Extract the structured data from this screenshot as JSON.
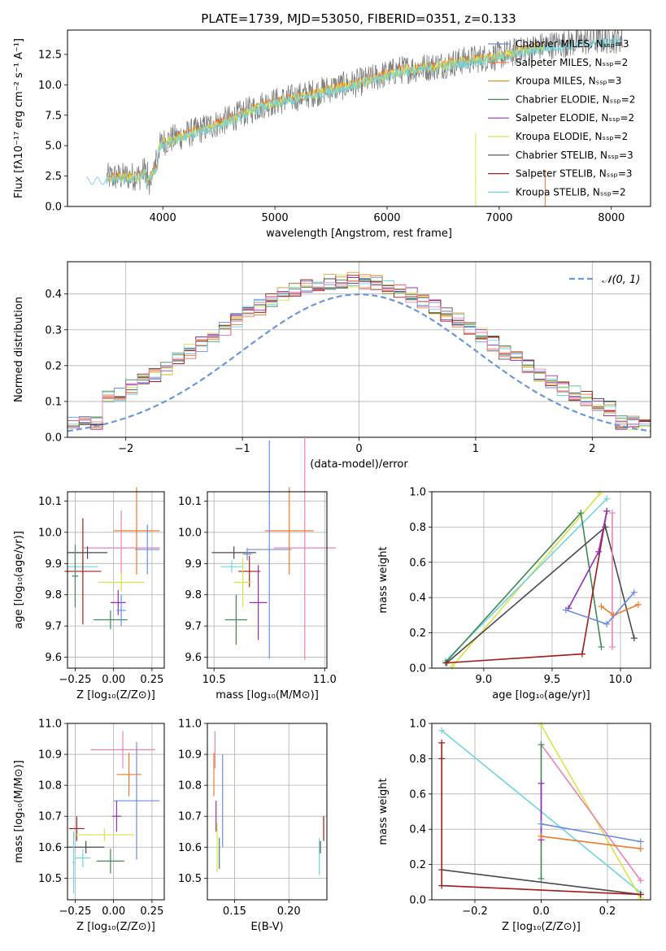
{
  "palette": {
    "chabrier_miles": "#6a8ee0",
    "salpeter_miles": "#ee7b2d",
    "kroupa_miles": "#d9912e",
    "chabrier_elodie": "#3f8a55",
    "salpeter_elodie": "#9b30b8",
    "kroupa_elodie": "#d9e34a",
    "chabrier_stelib": "#4a4a4a",
    "salpeter_stelib": "#a31b1b",
    "kroupa_stelib": "#72d4e0",
    "pink": "#ee82b5",
    "gaussian": "#6a98d8",
    "grid": "#b0b0b0",
    "spectrum": "#7f7f7f"
  },
  "chart_data": [
    {
      "id": "spectrum",
      "type": "line",
      "title": "PLATE=1739, MJD=53050, FIBERID=0351, z=0.133",
      "xlabel": "wavelength [Angstrom, rest frame]",
      "ylabel": "Flux [fλ10⁻¹⁷ erg cm⁻² s⁻¹ A⁻¹]",
      "xlim": [
        3150,
        8350
      ],
      "ylim": [
        0,
        14.5
      ],
      "xticks": [
        "4000",
        "5000",
        "6000",
        "7000",
        "8000"
      ],
      "yticks": [
        "0.0",
        "2.5",
        "5.0",
        "7.5",
        "10.0",
        "12.5"
      ],
      "grid": false,
      "legend_position": "top-right",
      "legend": [
        "Chabrier MILES, Nₛₛₚ=3",
        "Salpeter MILES, Nₛₛₚ=2",
        "Kroupa MILES, Nₛₛₚ=3",
        "Chabrier ELODIE, Nₛₛₚ=2",
        "Salpeter ELODIE, Nₛₛₚ=2",
        "Kroupa ELODIE, Nₛₛₚ=2",
        "Chabrier STELIB, Nₛₛₚ=3",
        "Salpeter STELIB, Nₛₛₚ=3",
        "Kroupa STELIB, Nₛₛₚ=2"
      ],
      "observed_trend": {
        "x": [
          3300,
          3500,
          3800,
          4000,
          4300,
          4600,
          4900,
          5200,
          5500,
          5800,
          6100,
          6400,
          6700,
          7000,
          7400,
          7800,
          8100
        ],
        "y": [
          2.2,
          2.4,
          2.5,
          5.3,
          6.2,
          7.2,
          8.4,
          9.0,
          9.7,
          10.3,
          11.2,
          11.5,
          12.0,
          12.4,
          13.2,
          13.6,
          13.8
        ]
      }
    },
    {
      "id": "residuals",
      "type": "histogram",
      "xlabel": "(data-model)/error",
      "ylabel": "Normed distribution",
      "xlim": [
        -2.5,
        2.5
      ],
      "ylim": [
        0,
        0.49
      ],
      "xticks": [
        "−2",
        "−1",
        "0",
        "1",
        "2"
      ],
      "yticks": [
        "0.0",
        "0.1",
        "0.2",
        "0.3",
        "0.4"
      ],
      "grid": true,
      "legend_position": "top-right",
      "legend": [
        "𝒩(0, 1)"
      ],
      "bin_width": 0.1
    },
    {
      "id": "age_vs_Z",
      "type": "errorbar",
      "xlabel": "Z [log₁₀(Z/Z⊙)]",
      "ylabel": "age  [log₁₀(age/yr)]",
      "xlim": [
        -0.3,
        0.33
      ],
      "ylim": [
        9.565,
        10.13
      ],
      "xticks": [
        "−0.25",
        "0.00",
        "0.25"
      ],
      "yticks": [
        "9.6",
        "9.7",
        "9.8",
        "9.9",
        "10.0",
        "10.1"
      ],
      "grid": true,
      "points": [
        {
          "color": "pink",
          "x": 0.05,
          "xerr": 0.25,
          "y": 9.95,
          "yerr": 0.12
        },
        {
          "color": "salpeter_miles",
          "x": 0.15,
          "xerr": 0.15,
          "y": 10.005,
          "yerr": 0.14
        },
        {
          "color": "chabrier_miles",
          "x": 0.22,
          "xerr": 0.08,
          "y": 9.945,
          "yerr": 0.08
        },
        {
          "color": "chabrier_stelib",
          "x": -0.17,
          "xerr": 0.13,
          "y": 9.935,
          "yerr": 0.02
        },
        {
          "color": "kroupa_stelib",
          "x": -0.2,
          "xerr": 0.1,
          "y": 9.89,
          "yerr": 0.02
        },
        {
          "color": "salpeter_stelib",
          "x": -0.2,
          "xerr": 0.12,
          "y": 9.875,
          "yerr": 0.17
        },
        {
          "color": "kroupa_elodie",
          "x": 0.05,
          "xerr": 0.15,
          "y": 9.84,
          "yerr": 0.03
        },
        {
          "color": "salpeter_elodie",
          "x": 0.03,
          "xerr": 0.05,
          "y": 9.775,
          "yerr": 0.04
        },
        {
          "color": "chabrier_elodie",
          "x": -0.02,
          "xerr": 0.11,
          "y": 9.72,
          "yerr": 0.03
        },
        {
          "color": "chabrier_elodie",
          "x": -0.25,
          "xerr": 0.02,
          "y": 9.86,
          "yerr": 0.1
        },
        {
          "color": "chabrier_miles",
          "x": 0.05,
          "xerr": 0.03,
          "y": 9.75,
          "yerr": 0.05
        }
      ]
    },
    {
      "id": "age_vs_mass",
      "type": "errorbar",
      "xlabel": "mass [log₁₀(M/M⊙)]",
      "xlim": [
        10.47,
        11.01
      ],
      "ylim": [
        9.565,
        10.13
      ],
      "xticks": [
        "10.5",
        "11.0"
      ],
      "yticks": [
        "9.6",
        "9.7",
        "9.8",
        "9.9",
        "10.0",
        "10.1"
      ],
      "grid": true,
      "points": [
        {
          "color": "pink",
          "x": 10.91,
          "xerr": 0.14,
          "y": 9.95,
          "yerr": 0.36
        },
        {
          "color": "salpeter_miles",
          "x": 10.84,
          "xerr": 0.11,
          "y": 10.005,
          "yerr": 0.14
        },
        {
          "color": "chabrier_miles",
          "x": 10.75,
          "xerr": 0.1,
          "y": 9.945,
          "yerr": 0.35
        },
        {
          "color": "chabrier_stelib",
          "x": 10.59,
          "xerr": 0.1,
          "y": 9.935,
          "yerr": 0.02
        },
        {
          "color": "kroupa_stelib",
          "x": 10.58,
          "xerr": 0.05,
          "y": 9.89,
          "yerr": 0.02
        },
        {
          "color": "salpeter_stelib",
          "x": 10.66,
          "xerr": 0.05,
          "y": 9.875,
          "yerr": 0.05
        },
        {
          "color": "kroupa_elodie",
          "x": 10.63,
          "xerr": 0.04,
          "y": 9.84,
          "yerr": 0.08
        },
        {
          "color": "salpeter_elodie",
          "x": 10.7,
          "xerr": 0.04,
          "y": 9.775,
          "yerr": 0.12
        },
        {
          "color": "chabrier_elodie",
          "x": 10.6,
          "xerr": 0.05,
          "y": 9.72,
          "yerr": 0.08
        },
        {
          "color": "chabrier_miles",
          "x": 10.65,
          "xerr": 0.02,
          "y": 9.93,
          "yerr": 0.02
        }
      ]
    },
    {
      "id": "weight_vs_age",
      "type": "line",
      "xlabel": "age  [log₁₀(age/yr)]",
      "ylabel": "mass weight",
      "xlim": [
        8.62,
        10.22
      ],
      "ylim": [
        0,
        1
      ],
      "xticks": [
        "9.0",
        "9.5",
        "10.0"
      ],
      "yticks": [
        "0.0",
        "0.2",
        "0.4",
        "0.6",
        "0.8",
        "1.0"
      ],
      "grid": true,
      "series": [
        {
          "color": "kroupa_elodie",
          "x": [
            8.77,
            9.85
          ],
          "y": [
            0.01,
            0.99
          ]
        },
        {
          "color": "kroupa_stelib",
          "x": [
            8.72,
            9.9
          ],
          "y": [
            0.04,
            0.96
          ]
        },
        {
          "color": "chabrier_elodie",
          "x": [
            8.72,
            9.71,
            9.86
          ],
          "y": [
            0.03,
            0.88,
            0.12
          ]
        },
        {
          "color": "chabrier_stelib",
          "x": [
            8.73,
            9.89,
            10.1
          ],
          "y": [
            0.03,
            0.8,
            0.17
          ]
        },
        {
          "color": "salpeter_stelib",
          "x": [
            8.73,
            9.72,
            9.9
          ],
          "y": [
            0.03,
            0.08,
            0.89
          ]
        },
        {
          "color": "salpeter_elodie",
          "x": [
            9.62,
            9.84,
            9.9
          ],
          "y": [
            0.34,
            0.66,
            0.89
          ]
        },
        {
          "color": "pink",
          "x": [
            9.94,
            9.94
          ],
          "y": [
            0.88,
            0.12
          ]
        },
        {
          "color": "salpeter_miles",
          "x": [
            9.86,
            9.95,
            10.13
          ],
          "y": [
            0.35,
            0.3,
            0.36
          ]
        },
        {
          "color": "chabrier_miles",
          "x": [
            9.6,
            9.9,
            10.1
          ],
          "y": [
            0.33,
            0.25,
            0.43
          ]
        }
      ]
    },
    {
      "id": "mass_vs_Z",
      "type": "errorbar",
      "xlabel": "Z [log₁₀(Z/Z⊙)]",
      "ylabel": "mass [log₁₀(M/M⊙)]",
      "xlim": [
        -0.3,
        0.33
      ],
      "ylim": [
        10.43,
        11.0
      ],
      "xticks": [
        "−0.25",
        "0.00",
        "0.25"
      ],
      "yticks": [
        "10.5",
        "10.6",
        "10.7",
        "10.8",
        "10.9",
        "11.0"
      ],
      "grid": true,
      "points": [
        {
          "color": "pink",
          "x": 0.06,
          "xerr": 0.21,
          "y": 10.915,
          "yerr": 0.06
        },
        {
          "color": "salpeter_miles",
          "x": 0.1,
          "xerr": 0.08,
          "y": 10.835,
          "yerr": 0.07
        },
        {
          "color": "chabrier_miles",
          "x": 0.15,
          "xerr": 0.15,
          "y": 10.75,
          "yerr": 0.19
        },
        {
          "color": "salpeter_elodie",
          "x": 0.02,
          "xerr": 0.03,
          "y": 10.7,
          "yerr": 0.05
        },
        {
          "color": "salpeter_stelib",
          "x": -0.24,
          "xerr": 0.05,
          "y": 10.66,
          "yerr": 0.04
        },
        {
          "color": "kroupa_elodie",
          "x": -0.06,
          "xerr": 0.2,
          "y": 10.64,
          "yerr": 0.02
        },
        {
          "color": "chabrier_stelib",
          "x": -0.18,
          "xerr": 0.12,
          "y": 10.6,
          "yerr": 0.02
        },
        {
          "color": "kroupa_stelib",
          "x": -0.2,
          "xerr": 0.05,
          "y": 10.565,
          "yerr": 0.03
        },
        {
          "color": "chabrier_elodie",
          "x": -0.02,
          "xerr": 0.09,
          "y": 10.555,
          "yerr": 0.04
        },
        {
          "color": "kroupa_stelib",
          "x": -0.26,
          "xerr": 0.01,
          "y": 10.55,
          "yerr": 0.1
        }
      ]
    },
    {
      "id": "mass_vs_ebv",
      "type": "errorbar",
      "xlabel": "E(B-V)",
      "xlim": [
        0.125,
        0.235
      ],
      "ylim": [
        10.43,
        11.0
      ],
      "xticks": [
        "0.15",
        "0.20"
      ],
      "yticks": [
        "10.5",
        "10.6",
        "10.7",
        "10.8",
        "10.9",
        "11.0"
      ],
      "grid": true,
      "points": [
        {
          "color": "pink",
          "x": 0.132,
          "xerr": 0.0,
          "y": 10.915,
          "yerr": 0.06
        },
        {
          "color": "salpeter_miles",
          "x": 0.131,
          "xerr": 0.0,
          "y": 10.835,
          "yerr": 0.07
        },
        {
          "color": "chabrier_miles",
          "x": 0.139,
          "xerr": 0.0,
          "y": 10.75,
          "yerr": 0.15
        },
        {
          "color": "salpeter_elodie",
          "x": 0.133,
          "xerr": 0.0,
          "y": 10.7,
          "yerr": 0.05
        },
        {
          "color": "kroupa_elodie",
          "x": 0.134,
          "xerr": 0.0,
          "y": 10.6,
          "yerr": 0.08
        },
        {
          "color": "chabrier_elodie",
          "x": 0.136,
          "xerr": 0.0,
          "y": 10.58,
          "yerr": 0.05
        },
        {
          "color": "salpeter_stelib",
          "x": 0.232,
          "xerr": 0.0,
          "y": 10.66,
          "yerr": 0.04
        },
        {
          "color": "chabrier_stelib",
          "x": 0.229,
          "xerr": 0.0,
          "y": 10.6,
          "yerr": 0.02
        },
        {
          "color": "kroupa_stelib",
          "x": 0.228,
          "xerr": 0.0,
          "y": 10.57,
          "yerr": 0.06
        }
      ]
    },
    {
      "id": "weight_vs_Z",
      "type": "line",
      "xlabel": "Z [log₁₀(Z/Z⊙)]",
      "ylabel": "mass weight",
      "xlim": [
        -0.33,
        0.33
      ],
      "ylim": [
        0,
        1
      ],
      "xticks": [
        "−0.2",
        "0.0",
        "0.2"
      ],
      "yticks": [
        "0.0",
        "0.2",
        "0.4",
        "0.6",
        "0.8",
        "1.0"
      ],
      "grid": true,
      "series": [
        {
          "color": "kroupa_stelib",
          "x": [
            -0.3,
            0.3
          ],
          "y": [
            0.96,
            0.04
          ]
        },
        {
          "color": "kroupa_elodie",
          "x": [
            0.0,
            0.3
          ],
          "y": [
            0.99,
            0.01
          ]
        },
        {
          "color": "pink",
          "x": [
            0.0,
            0.3
          ],
          "y": [
            0.88,
            0.11
          ]
        },
        {
          "color": "chabrier_elodie",
          "x": [
            0.0,
            0.0
          ],
          "y": [
            0.88,
            0.12
          ]
        },
        {
          "color": "salpeter_elodie",
          "x": [
            0.0,
            0.0
          ],
          "y": [
            0.66,
            0.34
          ]
        },
        {
          "color": "chabrier_miles",
          "x": [
            0.0,
            0.3
          ],
          "y": [
            0.43,
            0.33
          ]
        },
        {
          "color": "salpeter_miles",
          "x": [
            0.0,
            0.3
          ],
          "y": [
            0.36,
            0.29
          ]
        },
        {
          "color": "chabrier_stelib",
          "x": [
            -0.3,
            0.3
          ],
          "y": [
            0.17,
            0.03
          ]
        },
        {
          "color": "salpeter_stelib",
          "x": [
            -0.3,
            -0.3,
            -0.3,
            0.3
          ],
          "y": [
            0.89,
            0.8,
            0.08,
            0.03
          ]
        }
      ]
    }
  ]
}
